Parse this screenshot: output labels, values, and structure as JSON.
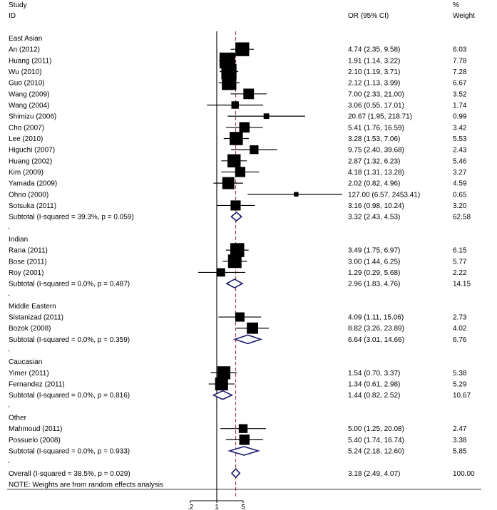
{
  "chart_data": {
    "type": "forest",
    "header": {
      "study": "Study",
      "id": "ID",
      "effect": "OR (95% CI)",
      "pct": "%",
      "weight": "Weight"
    },
    "x_ticks": [
      ".2",
      "1",
      "5"
    ],
    "x_tick_values": [
      0.2,
      1,
      5
    ],
    "x_scale": "log",
    "null_line": 1,
    "overall_estimate": 3.18,
    "groups": [
      {
        "name": "East Asian",
        "studies": [
          {
            "label": "An (2012)",
            "or": 4.74,
            "lo": 2.35,
            "hi": 9.58,
            "ci_text": "4.74 (2.35, 9.58)",
            "weight": "6.03"
          },
          {
            "label": "Huang (2011)",
            "or": 1.91,
            "lo": 1.14,
            "hi": 3.22,
            "ci_text": "1.91 (1.14, 3.22)",
            "weight": "7.78"
          },
          {
            "label": "Wu (2010)",
            "or": 2.1,
            "lo": 1.19,
            "hi": 3.71,
            "ci_text": "2.10 (1.19, 3.71)",
            "weight": "7.28"
          },
          {
            "label": "Guo (2010)",
            "or": 2.12,
            "lo": 1.13,
            "hi": 3.99,
            "ci_text": "2.12 (1.13, 3.99)",
            "weight": "6.67"
          },
          {
            "label": "Wang (2009)",
            "or": 7.0,
            "lo": 2.33,
            "hi": 21.0,
            "ci_text": "7.00 (2.33, 21.00)",
            "weight": "3.52"
          },
          {
            "label": "Wang (2004)",
            "or": 3.06,
            "lo": 0.55,
            "hi": 17.01,
            "ci_text": "3.06 (0.55, 17.01)",
            "weight": "1.74"
          },
          {
            "label": "Shimizu (2006)",
            "or": 20.67,
            "lo": 1.95,
            "hi": 218.71,
            "ci_text": "20.67 (1.95, 218.71)",
            "weight": "0.99"
          },
          {
            "label": "Cho (2007)",
            "or": 5.41,
            "lo": 1.76,
            "hi": 16.59,
            "ci_text": "5.41 (1.76, 16.59)",
            "weight": "3.42"
          },
          {
            "label": "Lee (2010)",
            "or": 3.28,
            "lo": 1.53,
            "hi": 7.06,
            "ci_text": "3.28 (1.53, 7.06)",
            "weight": "5.53"
          },
          {
            "label": "Higuchi (2007)",
            "or": 9.75,
            "lo": 2.4,
            "hi": 39.68,
            "ci_text": "9.75 (2.40, 39.68)",
            "weight": "2.43"
          },
          {
            "label": "Huang (2002)",
            "or": 2.87,
            "lo": 1.32,
            "hi": 6.23,
            "ci_text": "2.87 (1.32, 6.23)",
            "weight": "5.46"
          },
          {
            "label": "Kim (2009)",
            "or": 4.18,
            "lo": 1.31,
            "hi": 13.28,
            "ci_text": "4.18 (1.31, 13.28)",
            "weight": "3.27"
          },
          {
            "label": "Yamada (2009)",
            "or": 2.02,
            "lo": 0.82,
            "hi": 4.96,
            "ci_text": "2.02 (0.82, 4.96)",
            "weight": "4.59"
          },
          {
            "label": "Ohno (2000)",
            "or": 127.0,
            "lo": 6.57,
            "hi": 2453.41,
            "ci_text": "127.00 (6.57, 2453.41)",
            "weight": "0.65"
          },
          {
            "label": "Sotsuka (2011)",
            "or": 3.16,
            "lo": 0.98,
            "hi": 10.24,
            "ci_text": "3.16 (0.98, 10.24)",
            "weight": "3.20"
          }
        ],
        "subtotal": {
          "label": "Subtotal  (I-squared = 39.3%, p = 0.059)",
          "or": 3.32,
          "lo": 2.43,
          "hi": 4.53,
          "ci_text": "3.32 (2.43, 4.53)",
          "weight": "62.58"
        }
      },
      {
        "name": "Indian",
        "studies": [
          {
            "label": "Rana (2011)",
            "or": 3.49,
            "lo": 1.75,
            "hi": 6.97,
            "ci_text": "3.49 (1.75, 6.97)",
            "weight": "6.15"
          },
          {
            "label": "Bose (2011)",
            "or": 3.0,
            "lo": 1.44,
            "hi": 6.25,
            "ci_text": "3.00 (1.44, 6.25)",
            "weight": "5.77"
          },
          {
            "label": "Roy (2001)",
            "or": 1.29,
            "lo": 0.29,
            "hi": 5.68,
            "ci_text": "1.29 (0.29, 5.68)",
            "weight": "2.22"
          }
        ],
        "subtotal": {
          "label": "Subtotal  (I-squared = 0.0%, p = 0.487)",
          "or": 2.96,
          "lo": 1.83,
          "hi": 4.76,
          "ci_text": "2.96 (1.83, 4.76)",
          "weight": "14.15"
        }
      },
      {
        "name": "Middle Eastern",
        "studies": [
          {
            "label": "Sistanizad (2011)",
            "or": 4.09,
            "lo": 1.11,
            "hi": 15.06,
            "ci_text": "4.09 (1.11, 15.06)",
            "weight": "2.73"
          },
          {
            "label": "Bozok (2008)",
            "or": 8.82,
            "lo": 3.26,
            "hi": 23.89,
            "ci_text": "8.82 (3.26, 23.89)",
            "weight": "4.02"
          }
        ],
        "subtotal": {
          "label": "Subtotal  (I-squared = 0.0%, p = 0.359)",
          "or": 6.64,
          "lo": 3.01,
          "hi": 14.66,
          "ci_text": "6.64 (3.01, 14.66)",
          "weight": "6.76"
        }
      },
      {
        "name": "Caucasian",
        "studies": [
          {
            "label": "Yimer (2011)",
            "or": 1.54,
            "lo": 0.7,
            "hi": 3.37,
            "ci_text": "1.54 (0.70, 3.37)",
            "weight": "5.38"
          },
          {
            "label": "Fernandez (2011)",
            "or": 1.34,
            "lo": 0.61,
            "hi": 2.98,
            "ci_text": "1.34 (0.61, 2.98)",
            "weight": "5.29"
          }
        ],
        "subtotal": {
          "label": "Subtotal  (I-squared = 0.0%, p = 0.816)",
          "or": 1.44,
          "lo": 0.82,
          "hi": 2.52,
          "ci_text": "1.44 (0.82, 2.52)",
          "weight": "10.67"
        }
      },
      {
        "name": "Other",
        "studies": [
          {
            "label": "Mahmoud (2011)",
            "or": 5.0,
            "lo": 1.25,
            "hi": 20.08,
            "ci_text": "5.00 (1.25, 20.08)",
            "weight": "2.47"
          },
          {
            "label": "Possuelo (2008)",
            "or": 5.4,
            "lo": 1.74,
            "hi": 16.74,
            "ci_text": "5.40 (1.74, 16.74)",
            "weight": "3.38"
          }
        ],
        "subtotal": {
          "label": "Subtotal  (I-squared = 0.0%, p = 0.933)",
          "or": 5.24,
          "lo": 2.18,
          "hi": 12.6,
          "ci_text": "5.24 (2.18, 12.60)",
          "weight": "5.85"
        }
      }
    ],
    "overall": {
      "label": "Overall  (I-squared = 38.5%, p = 0.029)",
      "or": 3.18,
      "lo": 2.49,
      "hi": 4.07,
      "ci_text": "3.18 (2.49, 4.07)",
      "weight": "100.00"
    },
    "note": "NOTE: Weights are from random effects analysis",
    "colors": {
      "marker": "#000000",
      "diamond": "#1a1a6e",
      "ref_line": "#a0203a",
      "ink": "#000000"
    }
  }
}
